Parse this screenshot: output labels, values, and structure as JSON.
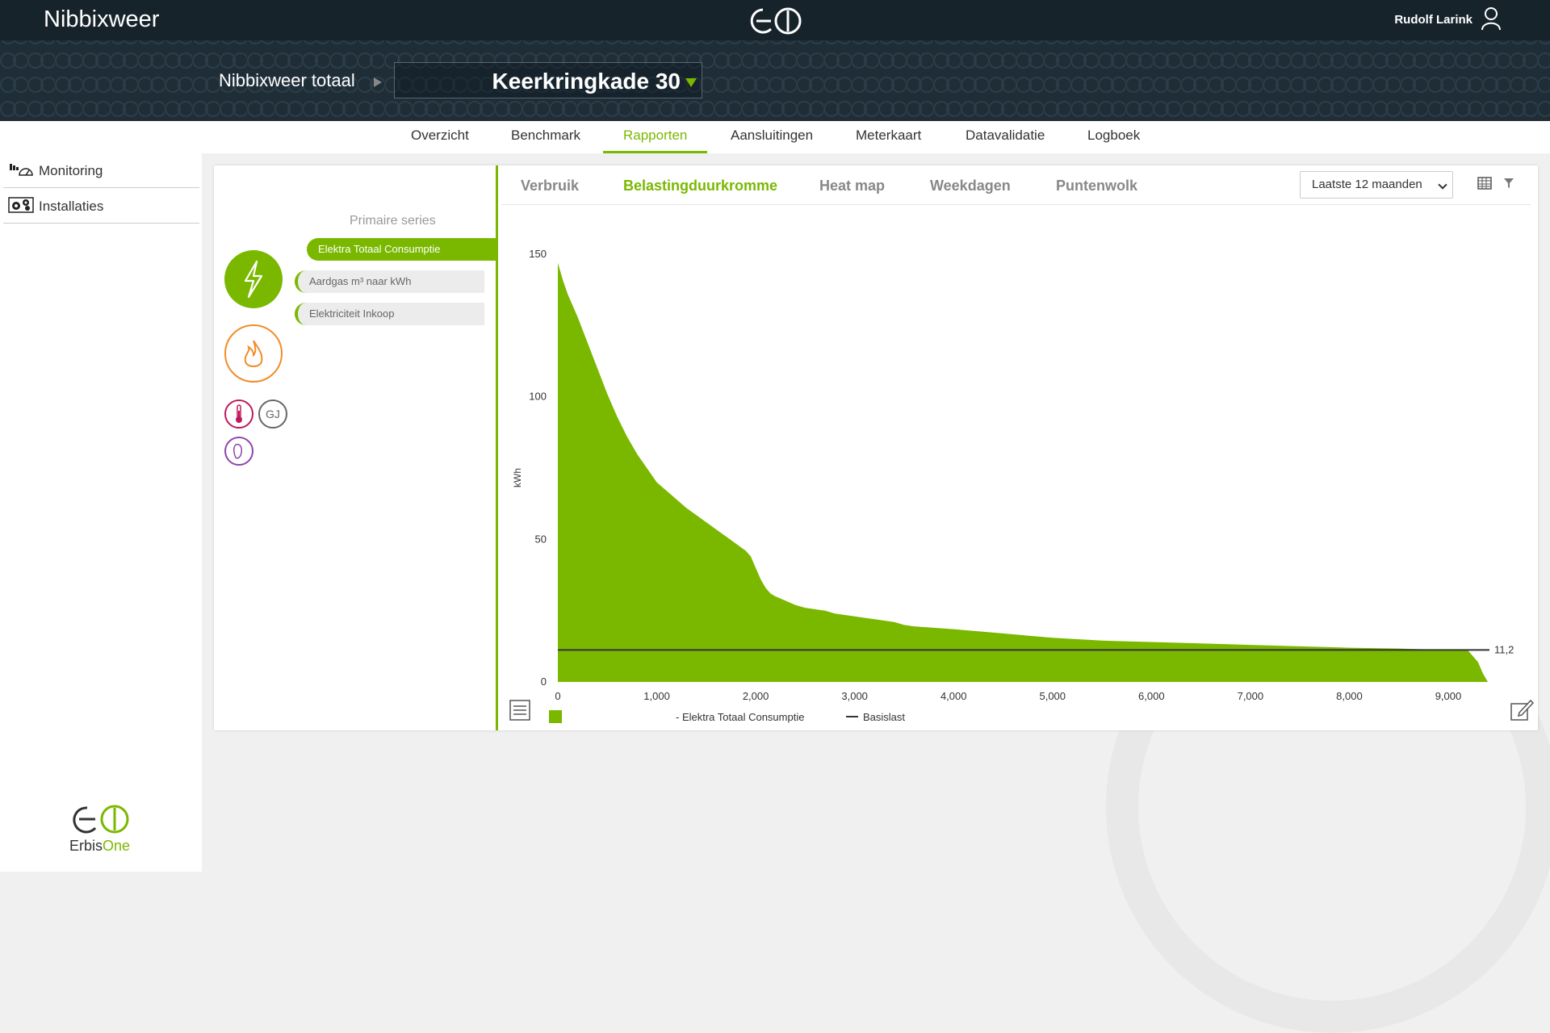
{
  "app": {
    "title": "Nibbixweer"
  },
  "user": {
    "name": "Rudolf Larink"
  },
  "breadcrumb": {
    "root": "Nibbixweer totaal",
    "location": "Keerkringkade 30"
  },
  "nav": {
    "tabs": [
      "Overzicht",
      "Benchmark",
      "Rapporten",
      "Aansluitingen",
      "Meterkaart",
      "Datavalidatie",
      "Logboek"
    ],
    "active": "Rapporten"
  },
  "sidebar": {
    "items": [
      {
        "label": "Monitoring",
        "icon": "monitoring-icon"
      },
      {
        "label": "Installaties",
        "icon": "installations-icon"
      }
    ],
    "brand_prefix": "Erbis",
    "brand_suffix": "One"
  },
  "series_panel": {
    "title": "Primaire series",
    "series": [
      "Elektra Totaal Consumptie",
      "Aardgas m³ naar kWh",
      "Elektriciteit Inkoop"
    ],
    "active_series": "Elektra Totaal Consumptie",
    "gj_label": "GJ"
  },
  "report_tabs": {
    "tabs": [
      "Verbruik",
      "Belastingduurkromme",
      "Heat map",
      "Weekdagen",
      "Puntenwolk"
    ],
    "active": "Belastingduurkromme"
  },
  "period": {
    "selected": "Laatste 12 maanden"
  },
  "colors": {
    "accent": "#7ab800",
    "header": "#1f2d37",
    "gas": "#f28c28",
    "temp": "#c2185b",
    "purple": "#8e44ad"
  },
  "chart_data": {
    "type": "area",
    "xlabel": "",
    "ylabel": "kWh",
    "xlim": [
      0,
      9400
    ],
    "ylim": [
      0,
      150
    ],
    "xticks": [
      0,
      1000,
      2000,
      3000,
      4000,
      5000,
      6000,
      7000,
      8000,
      9000
    ],
    "xtick_labels": [
      "0",
      "1,000",
      "2,000",
      "3,000",
      "4,000",
      "5,000",
      "6,000",
      "7,000",
      "8,000",
      "9,000"
    ],
    "yticks": [
      0,
      50,
      100,
      150
    ],
    "series": [
      {
        "name": "Elektra Totaal Consumptie",
        "type": "area",
        "color": "#7ab800",
        "x": [
          0,
          50,
          100,
          200,
          300,
          400,
          500,
          600,
          700,
          800,
          900,
          1000,
          1100,
          1200,
          1300,
          1400,
          1500,
          1600,
          1700,
          1800,
          1900,
          1950,
          2000,
          2050,
          2100,
          2150,
          2200,
          2300,
          2400,
          2500,
          2600,
          2700,
          2800,
          3000,
          3200,
          3400,
          3500,
          3600,
          4000,
          4500,
          5000,
          5500,
          6000,
          6500,
          7000,
          7500,
          8000,
          8500,
          9000,
          9200,
          9300,
          9350,
          9400
        ],
        "y": [
          147,
          141,
          136,
          128,
          119,
          110,
          101,
          93,
          86,
          80,
          75,
          70,
          67,
          64,
          61,
          58.5,
          56,
          53.5,
          51,
          48.5,
          46,
          44,
          40,
          36,
          33,
          31,
          30,
          28.5,
          27,
          26,
          25.5,
          25,
          24,
          23,
          22,
          21,
          20,
          19.5,
          18.5,
          17,
          15.5,
          14.5,
          14,
          13.5,
          13,
          12.5,
          12,
          11.7,
          11.2,
          11,
          7,
          3,
          0
        ]
      },
      {
        "name": "Basislast",
        "type": "line",
        "color": "#333333",
        "value": 11.2,
        "label": "11,2"
      }
    ],
    "legend": [
      "Elektra Totaal Consumptie",
      "Basislast"
    ]
  }
}
